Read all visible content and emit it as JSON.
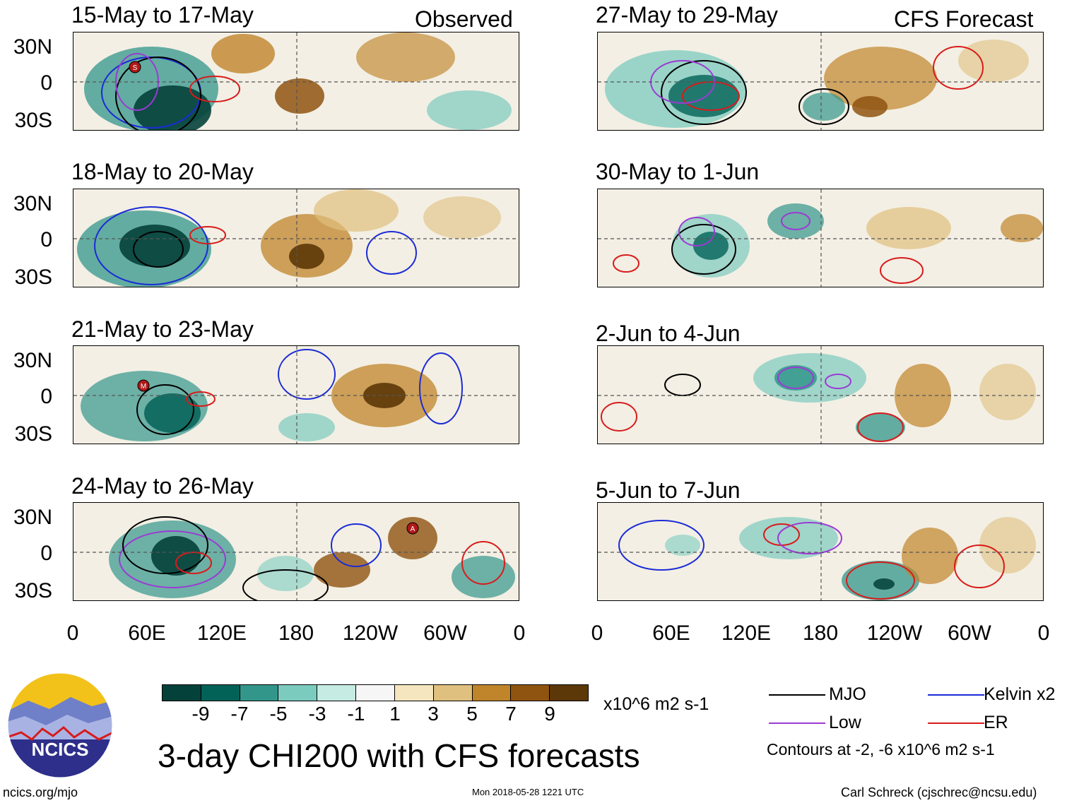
{
  "header": {
    "observed_label": "Observed",
    "forecast_label": "CFS Forecast"
  },
  "panels": {
    "observed": [
      {
        "title": "15-May to 17-May",
        "storms": [
          "S"
        ]
      },
      {
        "title": "18-May to 20-May",
        "storms": []
      },
      {
        "title": "21-May to 23-May",
        "storms": [
          "M"
        ]
      },
      {
        "title": "24-May to 26-May",
        "storms": [
          "A"
        ]
      }
    ],
    "forecast": [
      {
        "title": "27-May to 29-May"
      },
      {
        "title": "30-May to 1-Jun"
      },
      {
        "title": "2-Jun to 4-Jun"
      },
      {
        "title": "5-Jun to 7-Jun"
      }
    ]
  },
  "axes": {
    "lat_labels": [
      "30N",
      "0",
      "30S"
    ],
    "lon_labels": [
      "0",
      "60E",
      "120E",
      "180",
      "120W",
      "60W",
      "0"
    ]
  },
  "colorbar": {
    "colors": [
      "#04413a",
      "#036257",
      "#33968b",
      "#7ccbbf",
      "#c5ebe2",
      "#f6f6f6",
      "#f6e6c0",
      "#dfc07e",
      "#c0842a",
      "#8f5410",
      "#5c3708"
    ],
    "tick_labels": [
      "-9",
      "-7",
      "-5",
      "-3",
      "-1",
      "1",
      "3",
      "5",
      "7",
      "9"
    ],
    "units": "x10^6 m2 s-1"
  },
  "legend": {
    "items": [
      {
        "label": "MJO",
        "color": "#000000"
      },
      {
        "label": "Kelvin x2",
        "color": "#1b2bd6"
      },
      {
        "label": "Low",
        "color": "#9b3bd4"
      },
      {
        "label": "ER",
        "color": "#d81b1b"
      }
    ],
    "note": "Contours at -2, -6 x10^6 m2 s-1"
  },
  "title": "3-day CHI200 with CFS forecasts",
  "footer": {
    "logo_text": "NCICS",
    "url": "ncics.org/mjo",
    "timestamp": "Mon 2018-05-28 1221 UTC",
    "credit": "Carl Schreck (cjschrec@ncsu.edu)"
  }
}
